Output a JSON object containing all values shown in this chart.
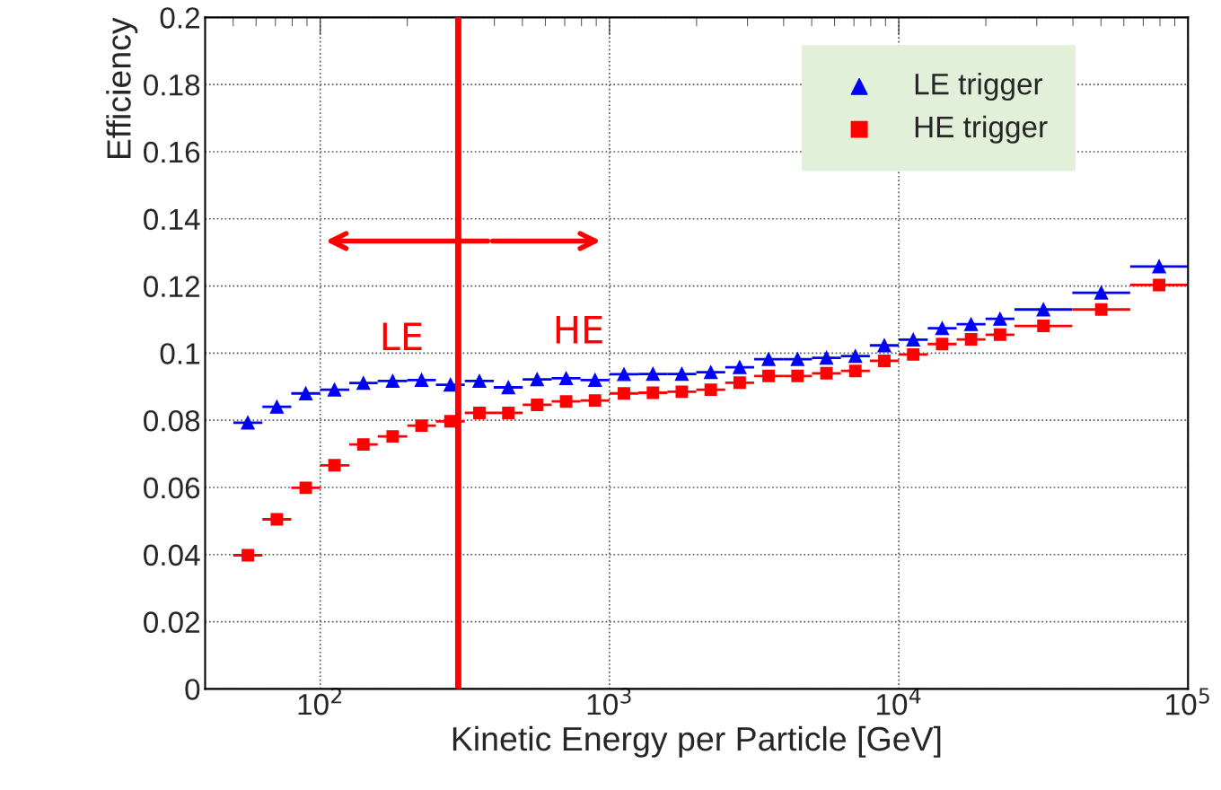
{
  "chart_data": {
    "type": "scatter",
    "xlabel": "Kinetic Energy per Particle [GeV]",
    "ylabel": "Efficiency",
    "x": [
      56.2,
      70.8,
      89.1,
      112,
      141,
      178,
      224,
      282,
      355,
      447,
      562,
      708,
      891,
      1122,
      1413,
      1778,
      2239,
      2818,
      3548,
      4467,
      5623,
      7079,
      8913,
      11220,
      14125,
      17783,
      22387,
      31623,
      50119,
      79433
    ],
    "series": [
      {
        "name": "LE trigger",
        "color": "#0000ff",
        "marker": "triangle",
        "values": [
          0.0793,
          0.084,
          0.088,
          0.0891,
          0.0911,
          0.0917,
          0.092,
          0.0906,
          0.0917,
          0.0898,
          0.0922,
          0.0925,
          0.092,
          0.0937,
          0.0938,
          0.0938,
          0.0943,
          0.0958,
          0.0982,
          0.0982,
          0.0986,
          0.0991,
          0.1023,
          0.104,
          0.1074,
          0.1086,
          0.1102,
          0.113,
          0.118,
          0.1258
        ],
        "xerrors": [
          [
            50.1,
            63.1
          ],
          [
            63.1,
            79.4
          ],
          [
            79.4,
            100
          ],
          [
            100,
            126
          ],
          [
            126,
            158
          ],
          [
            158,
            200
          ],
          [
            200,
            251
          ],
          [
            251,
            316
          ],
          [
            316,
            398
          ],
          [
            398,
            501
          ],
          [
            501,
            631
          ],
          [
            631,
            794
          ],
          [
            794,
            1000
          ],
          [
            1000,
            1259
          ],
          [
            1259,
            1585
          ],
          [
            1585,
            1995
          ],
          [
            1995,
            2512
          ],
          [
            2512,
            3162
          ],
          [
            3162,
            3981
          ],
          [
            3981,
            5012
          ],
          [
            5012,
            6310
          ],
          [
            6310,
            7943
          ],
          [
            7943,
            10000
          ],
          [
            10000,
            12589
          ],
          [
            12589,
            15849
          ],
          [
            15849,
            19953
          ],
          [
            19953,
            25119
          ],
          [
            25119,
            39811
          ],
          [
            39811,
            63096
          ],
          [
            63096,
            100000
          ]
        ]
      },
      {
        "name": "HE trigger",
        "color": "#ff0000",
        "marker": "square",
        "values": [
          0.0398,
          0.0505,
          0.0599,
          0.0666,
          0.0728,
          0.0752,
          0.0784,
          0.0797,
          0.0822,
          0.0822,
          0.0846,
          0.0856,
          0.0859,
          0.088,
          0.0882,
          0.0885,
          0.0891,
          0.0912,
          0.0932,
          0.0932,
          0.094,
          0.0947,
          0.0977,
          0.0996,
          0.1027,
          0.1041,
          0.1055,
          0.1081,
          0.113,
          0.1203
        ],
        "xerrors": [
          [
            50.1,
            63.1
          ],
          [
            63.1,
            79.4
          ],
          [
            79.4,
            100
          ],
          [
            100,
            126
          ],
          [
            126,
            158
          ],
          [
            158,
            200
          ],
          [
            200,
            251
          ],
          [
            251,
            316
          ],
          [
            316,
            398
          ],
          [
            398,
            501
          ],
          [
            501,
            631
          ],
          [
            631,
            794
          ],
          [
            794,
            1000
          ],
          [
            1000,
            1259
          ],
          [
            1259,
            1585
          ],
          [
            1585,
            1995
          ],
          [
            1995,
            2512
          ],
          [
            2512,
            3162
          ],
          [
            3162,
            3981
          ],
          [
            3981,
            5012
          ],
          [
            5012,
            6310
          ],
          [
            6310,
            7943
          ],
          [
            7943,
            10000
          ],
          [
            10000,
            12589
          ],
          [
            12589,
            15849
          ],
          [
            15849,
            19953
          ],
          [
            19953,
            25119
          ],
          [
            25119,
            39811
          ],
          [
            39811,
            63096
          ],
          [
            63096,
            100000
          ]
        ]
      }
    ],
    "log": "x",
    "xlim": [
      40,
      100000
    ],
    "xticks": [
      {
        "value": 100,
        "label": "10$^{2}$"
      },
      {
        "value": 1000,
        "label": "10$^{3}$"
      },
      {
        "value": 10000,
        "label": "10$^{4}$"
      },
      {
        "value": 100000,
        "label": "10$^{5}$"
      }
    ],
    "ylim": [
      0,
      0.2
    ],
    "yticks": [
      0,
      0.02,
      0.04,
      0.06,
      0.08,
      0.1,
      0.12,
      0.14,
      0.16,
      0.18,
      0.2
    ],
    "ref_lines": [
      {
        "axis": "x",
        "value": 300,
        "color": "#ff0000"
      }
    ],
    "annotations": [
      "LE",
      "HE"
    ],
    "grid": true,
    "legend": "top right"
  }
}
